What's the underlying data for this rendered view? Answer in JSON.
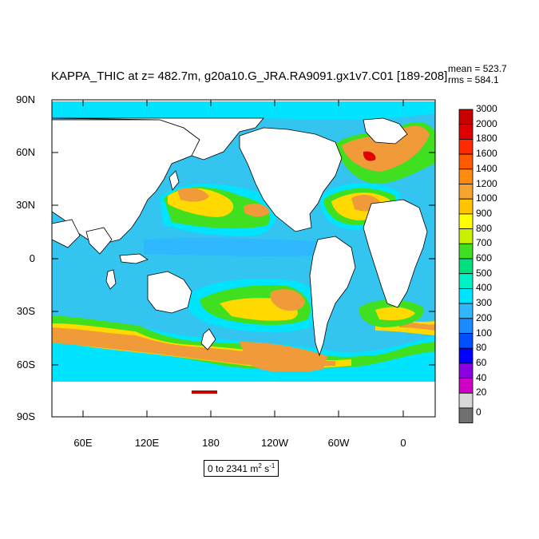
{
  "title": "KAPPA_THIC at z= 482.7m, g20a10.G_JRA.RA9091.gx1v7.C01 [189-208]",
  "stats": {
    "mean": "mean = 523.7",
    "rms": "rms = 584.1"
  },
  "lat_ticks": [
    "90N",
    "60N",
    "30N",
    "0",
    "30S",
    "60S",
    "90S"
  ],
  "lon_ticks": [
    "60E",
    "120E",
    "180",
    "120W",
    "60W",
    "0"
  ],
  "units": {
    "range": "0 to 2341 m",
    "sup1": "2",
    "mid": " s",
    "sup2": "-1"
  },
  "colorbar": {
    "levels": [
      "3000",
      "2000",
      "1800",
      "1600",
      "1400",
      "1200",
      "1000",
      "900",
      "800",
      "700",
      "600",
      "500",
      "400",
      "300",
      "200",
      "100",
      "80",
      "60",
      "40",
      "20",
      "0"
    ],
    "colors": [
      "#c80000",
      "#e00000",
      "#ff2a00",
      "#ff5a00",
      "#ff8a10",
      "#f6a42e",
      "#ffc400",
      "#ffff00",
      "#c8f000",
      "#40e020",
      "#00e080",
      "#00f0c8",
      "#00e4ff",
      "#30b8ff",
      "#1a8cff",
      "#0050ff",
      "#0000ff",
      "#8a00e0",
      "#d000c8",
      "#d8d8d8",
      "#707070"
    ]
  },
  "colors": {
    "land": "#ffffff",
    "ocean_low": "#33c4f0",
    "ocean_mid": "#00e4ff",
    "current_high": "#f19a3a",
    "current_mid": "#ffd900",
    "current_green": "#40e020"
  }
}
